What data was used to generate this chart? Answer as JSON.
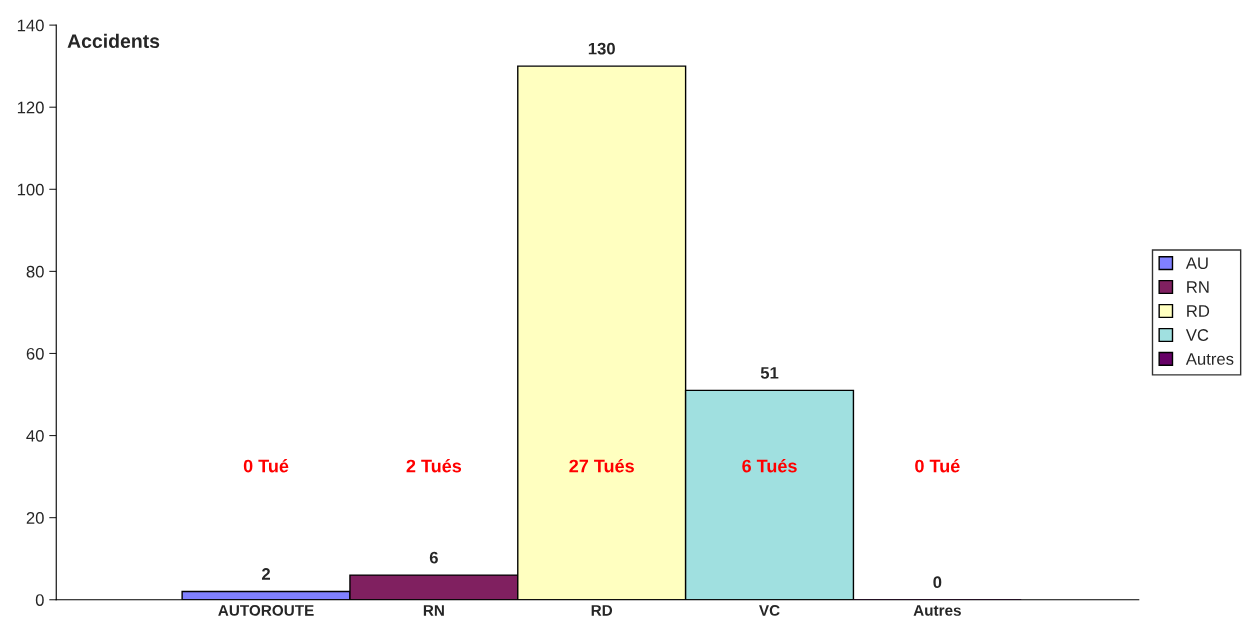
{
  "chart_data": {
    "type": "bar",
    "ylabel": "Accidents",
    "categories": [
      "AUTOROUTE",
      "RN",
      "RD",
      "VC",
      "Autres"
    ],
    "series": [
      {
        "name": "AU",
        "color": "#8080ff",
        "values": [
          2,
          null,
          null,
          null,
          null
        ]
      },
      {
        "name": "RN",
        "color": "#802060",
        "values": [
          null,
          6,
          null,
          null,
          null
        ]
      },
      {
        "name": "RD",
        "color": "#ffffc0",
        "values": [
          null,
          null,
          130,
          null,
          null
        ]
      },
      {
        "name": "VC",
        "color": "#a0e0e0",
        "values": [
          null,
          null,
          null,
          51,
          null
        ]
      },
      {
        "name": "Autres",
        "color": "#660066",
        "values": [
          null,
          null,
          null,
          null,
          0
        ]
      }
    ],
    "ylim": [
      0,
      140
    ],
    "yticks": [
      0,
      20,
      40,
      60,
      80,
      100,
      120,
      140
    ],
    "data_labels": true,
    "legend": "right",
    "grid": false,
    "annotations": [
      "0 Tué",
      "2 Tués",
      "27 Tués",
      "6 Tués",
      "0 Tué"
    ]
  }
}
